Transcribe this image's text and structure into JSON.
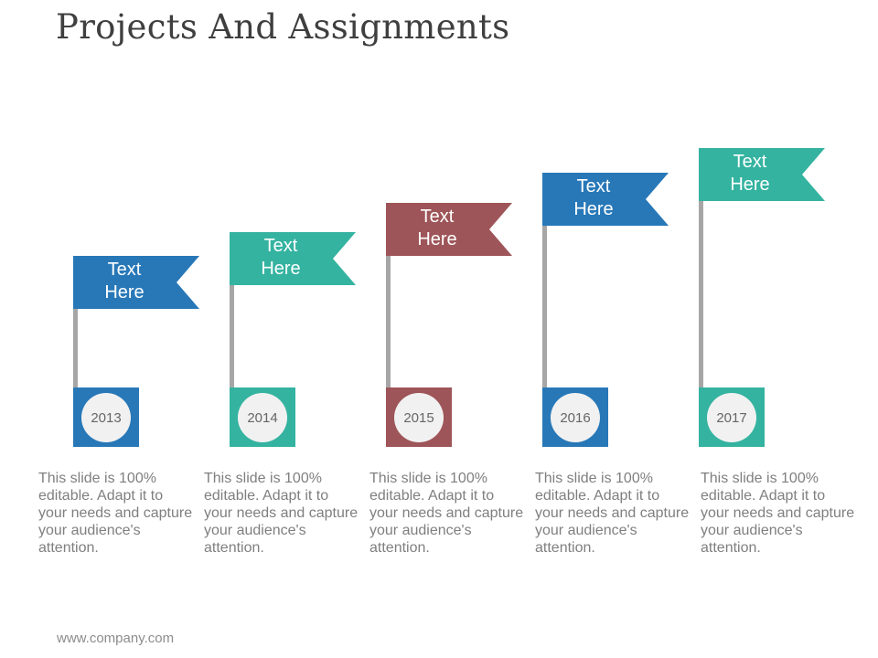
{
  "slide": {
    "title": "Projects And Assignments",
    "footer": "www.company.com"
  },
  "colors": {
    "blue": "#2878b8",
    "teal": "#34b3a0",
    "maroon": "#9e5559",
    "pole": "#a6a6a6",
    "circle": "#f1f1f1"
  },
  "milestones": [
    {
      "year": "2013",
      "flag_line1": "Text",
      "flag_line2": "Here",
      "color": "#2878b8",
      "description": "This slide is 100% editable. Adapt it to your needs and capture your audience's attention."
    },
    {
      "year": "2014",
      "flag_line1": "Text",
      "flag_line2": "Here",
      "color": "#34b3a0",
      "description": "This slide is 100% editable. Adapt it to your needs and capture your audience's attention."
    },
    {
      "year": "2015",
      "flag_line1": "Text",
      "flag_line2": "Here",
      "color": "#9e5559",
      "description": "This slide is 100% editable. Adapt it to your needs and capture your audience's attention."
    },
    {
      "year": "2016",
      "flag_line1": "Text",
      "flag_line2": "Here",
      "color": "#2878b8",
      "description": "This slide is 100% editable. Adapt it to your needs and capture your audience's attention."
    },
    {
      "year": "2017",
      "flag_line1": "Text",
      "flag_line2": "Here",
      "color": "#34b3a0",
      "description": "This slide is 100% editable. Adapt it to your needs and capture your audience's attention."
    }
  ]
}
